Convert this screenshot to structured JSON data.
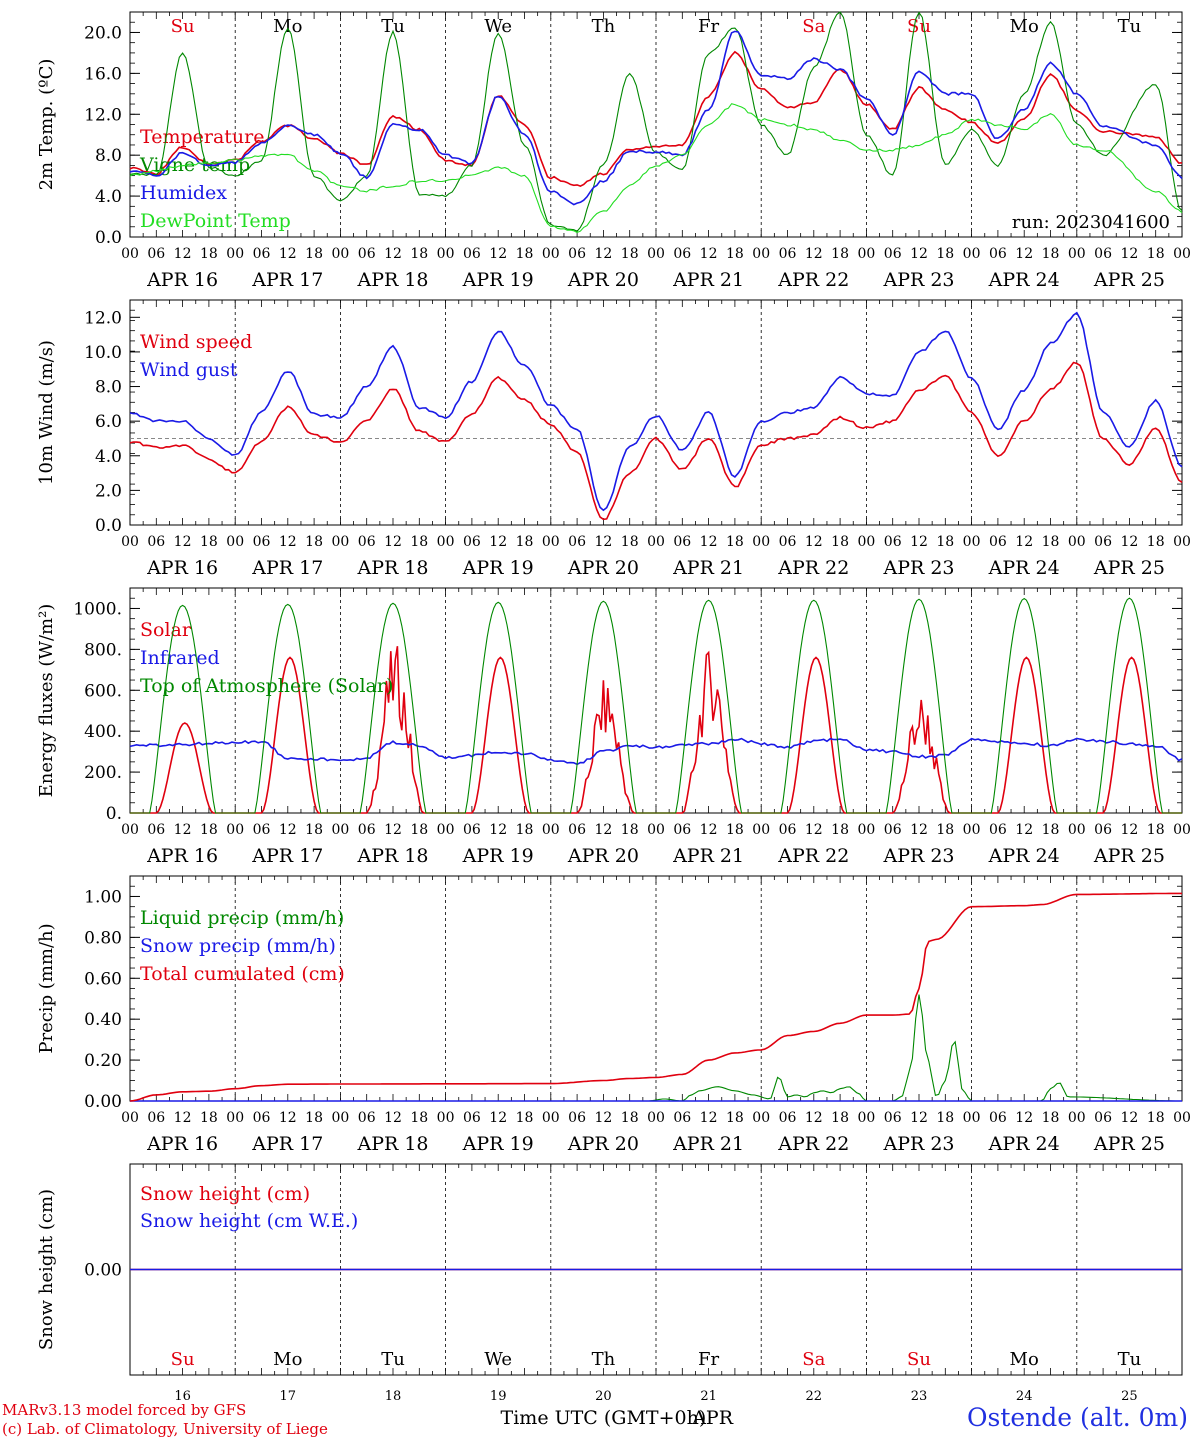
{
  "run_label": "run: 2023041600",
  "station": "Ostende (alt. 0m)",
  "credits": [
    "MARv3.13 model forced by GFS",
    "(c) Lab. of Climatology, University of Liege"
  ],
  "time_axis": {
    "xlabel": "Time UTC (GMT+0h)",
    "month": "APR",
    "dates": [
      "APR 16",
      "APR 17",
      "APR 18",
      "APR 19",
      "APR 20",
      "APR 21",
      "APR 22",
      "APR 23",
      "APR 24",
      "APR 25"
    ],
    "day_numbers": [
      "16",
      "17",
      "18",
      "19",
      "20",
      "21",
      "22",
      "23",
      "24",
      "25"
    ],
    "weekdays": [
      "Su",
      "Mo",
      "Tu",
      "We",
      "Th",
      "Fr",
      "Sa",
      "Su",
      "Mo",
      "Tu"
    ],
    "weekend_color": "#e0000f",
    "weekday_color": "#000000",
    "hour_ticks": [
      "00",
      "06",
      "12",
      "18"
    ],
    "final_tick": "00"
  },
  "colors": {
    "red": "#e0000f",
    "green": "#008800",
    "blue": "#1a1ae6",
    "lightgreen": "#22dd22",
    "purple": "#8a2be2"
  },
  "chart_data": [
    {
      "id": "temp",
      "type": "line",
      "ylabel": "2m Temp. (ºC)",
      "ylim": [
        0,
        22
      ],
      "yticks": [
        "0.0",
        "4.0",
        "8.0",
        "12.0",
        "16.0",
        "20.0"
      ],
      "ytick_values": [
        0,
        4,
        8,
        12,
        16,
        20
      ],
      "show_weekdays": true,
      "series": [
        {
          "name": "Temperature",
          "color": "red",
          "x": [
            0,
            6,
            12,
            18,
            24,
            30,
            36,
            42,
            48,
            54,
            60,
            66,
            72,
            78,
            84,
            90,
            96,
            102,
            108,
            114,
            120,
            126,
            132,
            138,
            144,
            150,
            156,
            162,
            168,
            174,
            180,
            186,
            192,
            198,
            204,
            210,
            216,
            222,
            234,
            240
          ],
          "y": [
            6.8,
            6.2,
            8.8,
            7.2,
            7.5,
            9.4,
            10.9,
            9.6,
            8.2,
            7.0,
            11.8,
            10.5,
            7.5,
            7.0,
            13.8,
            11.0,
            5.8,
            5.0,
            6.2,
            8.6,
            8.8,
            9.0,
            13.8,
            18.0,
            14.5,
            12.6,
            13.2,
            16.4,
            13.0,
            10.5,
            14.6,
            12.4,
            11.2,
            9.2,
            11.6,
            15.9,
            12.4,
            10.3,
            9.8,
            7.2
          ]
        },
        {
          "name": "Vigne temp",
          "color": "green",
          "x": [
            0,
            6,
            12,
            18,
            24,
            30,
            36,
            42,
            48,
            54,
            60,
            66,
            72,
            78,
            84,
            90,
            96,
            102,
            108,
            114,
            120,
            126,
            132,
            138,
            144,
            150,
            156,
            162,
            168,
            174,
            180,
            186,
            192,
            198,
            204,
            210,
            216,
            222,
            234,
            240
          ],
          "y": [
            6.2,
            6.0,
            18.0,
            6.8,
            6.0,
            7.5,
            20.5,
            6.0,
            3.5,
            6.0,
            20.0,
            4.2,
            4.0,
            7.0,
            20.0,
            9.0,
            1.2,
            0.6,
            7.0,
            16.0,
            8.2,
            6.5,
            18.0,
            20.5,
            11.0,
            8.0,
            16.5,
            22.0,
            10.0,
            6.0,
            22.0,
            7.0,
            10.5,
            7.0,
            14.0,
            21.0,
            11.0,
            8.0,
            15.0,
            2.5
          ]
        },
        {
          "name": "Humidex",
          "color": "blue",
          "x": [
            0,
            6,
            12,
            18,
            24,
            30,
            36,
            42,
            48,
            54,
            60,
            66,
            72,
            78,
            84,
            90,
            96,
            102,
            108,
            114,
            120,
            126,
            132,
            138,
            144,
            150,
            156,
            162,
            168,
            174,
            180,
            186,
            192,
            198,
            204,
            210,
            216,
            222,
            234,
            240
          ],
          "y": [
            6.5,
            6.0,
            8.2,
            6.9,
            7.3,
            9.2,
            10.9,
            10.0,
            8.2,
            5.8,
            11.0,
            10.5,
            8.0,
            7.2,
            13.8,
            10.0,
            4.5,
            3.2,
            5.5,
            8.4,
            8.3,
            8.0,
            12.5,
            20.2,
            15.8,
            15.5,
            17.4,
            16.4,
            13.5,
            10.0,
            16.2,
            14.0,
            14.0,
            9.6,
            12.5,
            17.0,
            14.0,
            10.8,
            9.0,
            5.8
          ]
        },
        {
          "name": "DewPoint Temp",
          "color": "lightgreen",
          "x": [
            0,
            6,
            12,
            18,
            24,
            30,
            36,
            42,
            48,
            54,
            60,
            66,
            72,
            78,
            84,
            90,
            96,
            102,
            108,
            114,
            120,
            126,
            132,
            138,
            144,
            150,
            156,
            162,
            168,
            174,
            180,
            186,
            192,
            198,
            204,
            210,
            216,
            222,
            234,
            240
          ],
          "y": [
            6.0,
            6.5,
            7.0,
            7.2,
            7.5,
            8.0,
            8.0,
            6.5,
            5.0,
            4.5,
            5.0,
            5.5,
            5.5,
            6.0,
            6.8,
            6.0,
            1.0,
            0.5,
            2.5,
            5.0,
            7.0,
            8.0,
            11.0,
            13.0,
            11.5,
            11.0,
            10.5,
            9.5,
            8.5,
            8.5,
            9.0,
            10.0,
            11.5,
            11.0,
            10.5,
            12.0,
            9.0,
            8.5,
            4.5,
            2.5
          ]
        }
      ]
    },
    {
      "id": "wind",
      "type": "line",
      "ylabel": "10m Wind (m/s)",
      "ylim": [
        0,
        13
      ],
      "yticks": [
        "0.0",
        "2.0",
        "4.0",
        "6.0",
        "8.0",
        "10.0",
        "12.0"
      ],
      "ytick_values": [
        0,
        2,
        4,
        6,
        8,
        10,
        12
      ],
      "reference_line": 5.0,
      "series": [
        {
          "name": "Wind speed",
          "color": "red",
          "x": [
            0,
            6,
            12,
            18,
            24,
            30,
            36,
            42,
            48,
            54,
            60,
            66,
            72,
            78,
            84,
            90,
            96,
            102,
            108,
            114,
            120,
            126,
            132,
            138,
            144,
            150,
            156,
            162,
            168,
            174,
            180,
            186,
            192,
            198,
            204,
            210,
            216,
            222,
            228,
            234,
            240
          ],
          "y": [
            4.8,
            4.5,
            4.6,
            3.8,
            3.0,
            4.8,
            6.8,
            5.2,
            4.8,
            6.0,
            7.9,
            5.4,
            4.8,
            6.4,
            8.5,
            7.2,
            5.8,
            4.2,
            0.3,
            3.0,
            5.0,
            3.2,
            5.0,
            2.2,
            4.6,
            5.0,
            5.2,
            6.2,
            5.6,
            6.0,
            7.8,
            8.6,
            6.5,
            4.0,
            6.0,
            7.8,
            9.4,
            5.0,
            3.5,
            5.6,
            2.5
          ]
        },
        {
          "name": "Wind gust",
          "color": "blue",
          "x": [
            0,
            6,
            12,
            18,
            24,
            30,
            36,
            42,
            48,
            54,
            60,
            66,
            72,
            78,
            84,
            90,
            96,
            102,
            108,
            114,
            120,
            126,
            132,
            138,
            144,
            150,
            156,
            162,
            168,
            174,
            180,
            186,
            192,
            198,
            204,
            210,
            216,
            222,
            228,
            234,
            240
          ],
          "y": [
            6.5,
            6.0,
            6.0,
            5.0,
            4.0,
            6.5,
            8.9,
            6.4,
            6.2,
            8.0,
            10.3,
            6.8,
            6.2,
            8.3,
            11.2,
            9.2,
            6.9,
            5.5,
            0.8,
            4.5,
            6.3,
            4.3,
            6.5,
            2.8,
            6.0,
            6.5,
            6.8,
            8.5,
            7.6,
            7.5,
            10.0,
            11.2,
            8.5,
            5.5,
            7.8,
            10.5,
            12.2,
            6.5,
            4.5,
            7.2,
            3.4
          ]
        }
      ]
    },
    {
      "id": "energy",
      "type": "line",
      "ylabel": "Energy fluxes (W/m²)",
      "ylim": [
        0,
        1100
      ],
      "yticks": [
        "0.",
        "200.",
        "400.",
        "600.",
        "800.",
        "1000."
      ],
      "ytick_values": [
        0,
        200,
        400,
        600,
        800,
        1000
      ],
      "series": [
        {
          "name": "Solar",
          "color": "red",
          "daily_peaks": [
            440,
            760,
            760,
            760,
            600,
            750,
            760,
            540,
            760,
            760
          ]
        },
        {
          "name": "Infrared",
          "color": "blue",
          "x": [
            0,
            6,
            12,
            18,
            24,
            30,
            36,
            42,
            48,
            54,
            60,
            66,
            72,
            78,
            84,
            90,
            96,
            102,
            108,
            114,
            120,
            126,
            132,
            138,
            144,
            150,
            156,
            162,
            168,
            174,
            180,
            186,
            192,
            198,
            204,
            210,
            216,
            222,
            228,
            234,
            240
          ],
          "y": [
            330,
            330,
            335,
            340,
            345,
            350,
            270,
            265,
            255,
            270,
            345,
            330,
            270,
            280,
            300,
            290,
            260,
            240,
            300,
            330,
            320,
            330,
            340,
            360,
            340,
            320,
            350,
            360,
            310,
            300,
            275,
            280,
            360,
            350,
            340,
            330,
            360,
            350,
            340,
            330,
            260
          ]
        },
        {
          "name": "Top of Atmosphere (Solar)",
          "color": "green",
          "daily_peaks": [
            1015,
            1020,
            1025,
            1030,
            1035,
            1040,
            1040,
            1045,
            1048,
            1050
          ]
        }
      ]
    },
    {
      "id": "precip",
      "type": "line",
      "ylabel": "Precip (mm/h)",
      "ylim": [
        0,
        1.1
      ],
      "yticks": [
        "0.00",
        "0.20",
        "0.40",
        "0.60",
        "0.80",
        "1.00"
      ],
      "ytick_values": [
        0,
        0.2,
        0.4,
        0.6,
        0.8,
        1.0
      ],
      "series": [
        {
          "name": "Liquid precip (mm/h)",
          "color": "green",
          "x": [
            0,
            118,
            122,
            126,
            128,
            130,
            134,
            138,
            142,
            146,
            148,
            150,
            152,
            154,
            156,
            158,
            160,
            162,
            164,
            166,
            168,
            174,
            176,
            178,
            180,
            182,
            184,
            186,
            188,
            190,
            192,
            208,
            210,
            212,
            214,
            240
          ],
          "y": [
            0,
            0,
            0.01,
            0,
            0.03,
            0.05,
            0.07,
            0.05,
            0.03,
            0.01,
            0.12,
            0.02,
            0.03,
            0.02,
            0.04,
            0.05,
            0.04,
            0.06,
            0.07,
            0.04,
            0,
            0,
            0.02,
            0.15,
            0.52,
            0.2,
            0.02,
            0.1,
            0.3,
            0.05,
            0,
            0,
            0.06,
            0.09,
            0.02,
            0
          ]
        },
        {
          "name": "Snow precip (mm/h)",
          "color": "blue",
          "x": [
            0,
            240
          ],
          "y": [
            0,
            0
          ]
        },
        {
          "name": "Total cumulated (cm)",
          "color": "red",
          "x": [
            0,
            6,
            12,
            18,
            24,
            30,
            36,
            48,
            72,
            96,
            108,
            114,
            120,
            126,
            132,
            138,
            144,
            150,
            156,
            162,
            168,
            174,
            178,
            180,
            182,
            184,
            192,
            204,
            208,
            216,
            240
          ],
          "y": [
            0.0,
            0.03,
            0.045,
            0.048,
            0.06,
            0.075,
            0.082,
            0.083,
            0.084,
            0.085,
            0.1,
            0.11,
            0.115,
            0.13,
            0.2,
            0.235,
            0.25,
            0.32,
            0.34,
            0.38,
            0.42,
            0.42,
            0.425,
            0.55,
            0.78,
            0.79,
            0.95,
            0.955,
            0.96,
            1.01,
            1.015
          ]
        }
      ]
    },
    {
      "id": "snow",
      "type": "line",
      "ylabel": "Snow height (cm)",
      "ylim": [
        -1,
        1
      ],
      "yticks": [
        "0.00"
      ],
      "ytick_values": [
        0
      ],
      "show_weekdays_bottom": true,
      "series": [
        {
          "name": "Snow height (cm)",
          "color": "red",
          "x": [
            0,
            240
          ],
          "y": [
            0,
            0
          ]
        },
        {
          "name": "Snow height (cm W.E.)",
          "color": "blue",
          "x": [
            0,
            240
          ],
          "y": [
            0,
            0
          ]
        }
      ]
    }
  ]
}
